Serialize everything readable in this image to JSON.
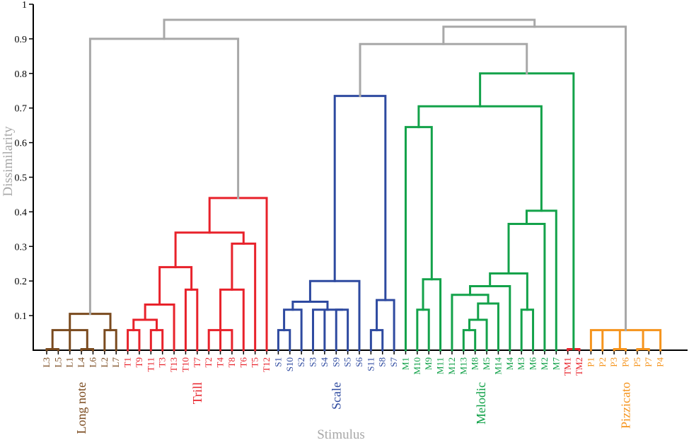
{
  "chart_data": {
    "type": "dendrogram",
    "ylabel": "Dissimilarity",
    "xlabel": "Stimulus",
    "ylim": [
      0,
      1
    ],
    "yticks": [
      "0.1",
      "0.2",
      "0.3",
      "0.4",
      "0.5",
      "0.6",
      "0.7",
      "0.8",
      "0.9",
      "1"
    ],
    "colors": {
      "L": "#7a4a1e",
      "T": "#e8222b",
      "S": "#2e4aa0",
      "M": "#13a24a",
      "TM": "#e8222b",
      "P": "#f5941d",
      "link": "#a8a8a8"
    },
    "leaves": [
      {
        "label": "L3",
        "group": "L"
      },
      {
        "label": "L5",
        "group": "L"
      },
      {
        "label": "L1",
        "group": "L"
      },
      {
        "label": "L4",
        "group": "L"
      },
      {
        "label": "L6",
        "group": "L"
      },
      {
        "label": "L2",
        "group": "L"
      },
      {
        "label": "L7",
        "group": "L"
      },
      {
        "label": "T1",
        "group": "T"
      },
      {
        "label": "T9",
        "group": "T"
      },
      {
        "label": "T11",
        "group": "T"
      },
      {
        "label": "T3",
        "group": "T"
      },
      {
        "label": "T13",
        "group": "T"
      },
      {
        "label": "T10",
        "group": "T"
      },
      {
        "label": "T7",
        "group": "T"
      },
      {
        "label": "T2",
        "group": "T"
      },
      {
        "label": "T4",
        "group": "T"
      },
      {
        "label": "T8",
        "group": "T"
      },
      {
        "label": "T6",
        "group": "T"
      },
      {
        "label": "T5",
        "group": "T"
      },
      {
        "label": "T12",
        "group": "T"
      },
      {
        "label": "S1",
        "group": "S"
      },
      {
        "label": "S10",
        "group": "S"
      },
      {
        "label": "S2",
        "group": "S"
      },
      {
        "label": "S3",
        "group": "S"
      },
      {
        "label": "S4",
        "group": "S"
      },
      {
        "label": "S9",
        "group": "S"
      },
      {
        "label": "S5",
        "group": "S"
      },
      {
        "label": "S6",
        "group": "S"
      },
      {
        "label": "S11",
        "group": "S"
      },
      {
        "label": "S8",
        "group": "S"
      },
      {
        "label": "S7",
        "group": "S"
      },
      {
        "label": "M1",
        "group": "M"
      },
      {
        "label": "M10",
        "group": "M"
      },
      {
        "label": "M9",
        "group": "M"
      },
      {
        "label": "M11",
        "group": "M"
      },
      {
        "label": "M12",
        "group": "M"
      },
      {
        "label": "M13",
        "group": "M"
      },
      {
        "label": "M8",
        "group": "M"
      },
      {
        "label": "M5",
        "group": "M"
      },
      {
        "label": "M14",
        "group": "M"
      },
      {
        "label": "M4",
        "group": "M"
      },
      {
        "label": "M3",
        "group": "M"
      },
      {
        "label": "M6",
        "group": "M"
      },
      {
        "label": "M2",
        "group": "M"
      },
      {
        "label": "M7",
        "group": "M"
      },
      {
        "label": "TM1",
        "group": "TM"
      },
      {
        "label": "TM2",
        "group": "TM"
      },
      {
        "label": "P1",
        "group": "P"
      },
      {
        "label": "P2",
        "group": "P"
      },
      {
        "label": "P3",
        "group": "P"
      },
      {
        "label": "P6",
        "group": "P"
      },
      {
        "label": "P5",
        "group": "P"
      },
      {
        "label": "P7",
        "group": "P"
      },
      {
        "label": "P4",
        "group": "P"
      }
    ],
    "group_labels": [
      {
        "text": "Long note",
        "group": "L",
        "leaves": [
          0,
          6
        ]
      },
      {
        "text": "Trill",
        "group": "T",
        "leaves": [
          7,
          19
        ]
      },
      {
        "text": "Scale",
        "group": "S",
        "leaves": [
          20,
          30
        ]
      },
      {
        "text": "Melodic",
        "group": "M",
        "leaves": [
          31,
          44
        ]
      },
      {
        "text": "Pizzicato",
        "group": "P",
        "leaves": [
          47,
          53
        ]
      }
    ],
    "tree": {
      "c": "link",
      "h": 0.955,
      "ch": [
        {
          "c": "link",
          "h": 0.9,
          "ch": [
            {
              "c": "L",
              "h": 0.105,
              "ch": [
                {
                  "c": "L",
                  "h": 0.058,
                  "ch": [
                    {
                      "c": "L",
                      "h": 0.003,
                      "ch": [
                        {
                          "leaf": 0
                        },
                        {
                          "leaf": 1
                        }
                      ]
                    },
                    {
                      "leaf": 2
                    },
                    {
                      "c": "L",
                      "h": 0.003,
                      "ch": [
                        {
                          "leaf": 3
                        },
                        {
                          "leaf": 4
                        }
                      ]
                    }
                  ]
                },
                {
                  "c": "L",
                  "h": 0.058,
                  "ch": [
                    {
                      "leaf": 5
                    },
                    {
                      "leaf": 6
                    }
                  ]
                }
              ]
            },
            {
              "c": "T",
              "h": 0.44,
              "ch": [
                {
                  "c": "T",
                  "h": 0.34,
                  "ch": [
                    {
                      "c": "T",
                      "h": 0.24,
                      "ch": [
                        {
                          "c": "T",
                          "h": 0.132,
                          "ch": [
                            {
                              "c": "T",
                              "h": 0.088,
                              "ch": [
                                {
                                  "c": "T",
                                  "h": 0.058,
                                  "ch": [
                                    {
                                      "leaf": 7
                                    },
                                    {
                                      "leaf": 8
                                    }
                                  ]
                                },
                                {
                                  "c": "T",
                                  "h": 0.058,
                                  "ch": [
                                    {
                                      "leaf": 9
                                    },
                                    {
                                      "leaf": 10
                                    }
                                  ]
                                }
                              ]
                            },
                            {
                              "leaf": 11
                            }
                          ]
                        },
                        {
                          "c": "T",
                          "h": 0.175,
                          "ch": [
                            {
                              "leaf": 12
                            },
                            {
                              "leaf": 13
                            }
                          ]
                        }
                      ]
                    },
                    {
                      "c": "T",
                      "h": 0.308,
                      "ch": [
                        {
                          "c": "T",
                          "h": 0.175,
                          "ch": [
                            {
                              "c": "T",
                              "h": 0.058,
                              "ch": [
                                {
                                  "leaf": 14
                                },
                                {
                                  "leaf": 15
                                },
                                {
                                  "leaf": 16
                                }
                              ]
                            },
                            {
                              "leaf": 17
                            }
                          ]
                        },
                        {
                          "leaf": 18
                        }
                      ]
                    }
                  ]
                },
                {
                  "leaf": 19
                }
              ]
            }
          ]
        },
        {
          "c": "link",
          "h": 0.935,
          "ch": [
            {
              "c": "link",
              "h": 0.885,
              "ch": [
                {
                  "c": "S",
                  "h": 0.735,
                  "ch": [
                    {
                      "c": "S",
                      "h": 0.2,
                      "ch": [
                        {
                          "c": "S",
                          "h": 0.14,
                          "ch": [
                            {
                              "c": "S",
                              "h": 0.117,
                              "ch": [
                                {
                                  "c": "S",
                                  "h": 0.058,
                                  "ch": [
                                    {
                                      "leaf": 20
                                    },
                                    {
                                      "leaf": 21
                                    }
                                  ]
                                },
                                {
                                  "leaf": 22
                                }
                              ]
                            },
                            {
                              "c": "S",
                              "h": 0.117,
                              "ch": [
                                {
                                  "leaf": 23
                                },
                                {
                                  "leaf": 24
                                },
                                {
                                  "c": "S",
                                  "h": 0.117,
                                  "ch": [
                                    {
                                      "leaf": 25
                                    },
                                    {
                                      "leaf": 26
                                    }
                                  ]
                                }
                              ]
                            }
                          ]
                        },
                        {
                          "leaf": 27
                        }
                      ]
                    },
                    {
                      "c": "S",
                      "h": 0.145,
                      "ch": [
                        {
                          "c": "S",
                          "h": 0.058,
                          "ch": [
                            {
                              "leaf": 28
                            },
                            {
                              "leaf": 29
                            }
                          ]
                        },
                        {
                          "leaf": 30
                        }
                      ]
                    }
                  ]
                },
                {
                  "c": "M",
                  "h": 0.8,
                  "ch": [
                    {
                      "c": "M",
                      "h": 0.705,
                      "ch": [
                        {
                          "c": "M",
                          "h": 0.645,
                          "ch": [
                            {
                              "leaf": 31
                            },
                            {
                              "c": "M",
                              "h": 0.205,
                              "ch": [
                                {
                                  "c": "M",
                                  "h": 0.117,
                                  "ch": [
                                    {
                                      "leaf": 32
                                    },
                                    {
                                      "leaf": 33
                                    }
                                  ]
                                },
                                {
                                  "leaf": 34
                                }
                              ]
                            }
                          ]
                        },
                        {
                          "c": "M",
                          "h": 0.403,
                          "ch": [
                            {
                              "c": "M",
                              "h": 0.365,
                              "ch": [
                                {
                                  "c": "M",
                                  "h": 0.222,
                                  "ch": [
                                    {
                                      "c": "M",
                                      "h": 0.185,
                                      "ch": [
                                        {
                                          "c": "M",
                                          "h": 0.16,
                                          "ch": [
                                            {
                                              "leaf": 35
                                            },
                                            {
                                              "c": "M",
                                              "h": 0.135,
                                              "ch": [
                                                {
                                                  "c": "M",
                                                  "h": 0.088,
                                                  "ch": [
                                                    {
                                                      "c": "M",
                                                      "h": 0.058,
                                                      "ch": [
                                                        {
                                                          "leaf": 36
                                                        },
                                                        {
                                                          "leaf": 37
                                                        }
                                                      ]
                                                    },
                                                    {
                                                      "leaf": 38
                                                    }
                                                  ]
                                                },
                                                {
                                                  "leaf": 39
                                                }
                                              ]
                                            }
                                          ]
                                        },
                                        {
                                          "leaf": 40
                                        }
                                      ]
                                    },
                                    {
                                      "c": "M",
                                      "h": 0.117,
                                      "ch": [
                                        {
                                          "leaf": 41
                                        },
                                        {
                                          "leaf": 42
                                        }
                                      ]
                                    }
                                  ]
                                },
                                {
                                  "leaf": 43
                                }
                              ]
                            },
                            {
                              "leaf": 44
                            }
                          ]
                        }
                      ]
                    },
                    {
                      "c": "TM",
                      "h": 0.003,
                      "ch": [
                        {
                          "leaf": 45
                        },
                        {
                          "leaf": 46
                        }
                      ]
                    }
                  ]
                }
              ]
            },
            {
              "c": "P",
              "h": 0.058,
              "ch": [
                {
                  "leaf": 47
                },
                {
                  "leaf": 48
                },
                {
                  "c": "P",
                  "h": 0.003,
                  "ch": [
                    {
                      "leaf": 49
                    },
                    {
                      "leaf": 50
                    }
                  ]
                },
                {
                  "c": "P",
                  "h": 0.003,
                  "ch": [
                    {
                      "leaf": 51
                    },
                    {
                      "leaf": 52
                    }
                  ]
                },
                {
                  "leaf": 53
                }
              ]
            }
          ]
        }
      ]
    }
  }
}
